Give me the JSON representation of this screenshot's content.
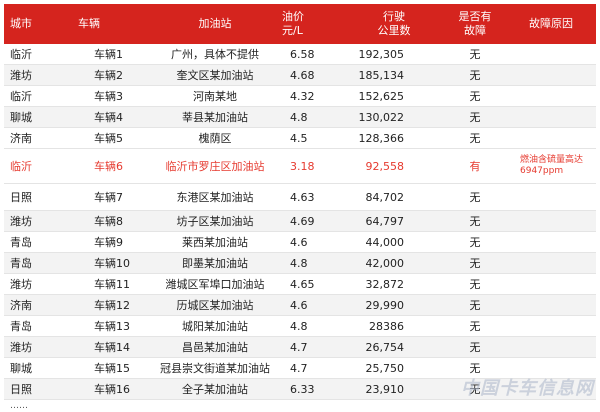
{
  "headers": {
    "city": "城市",
    "vehicle": "车辆",
    "station": "加油站",
    "price": "油价\n元/L",
    "mileage": "行驶\n公里数",
    "fault": "是否有\n故障",
    "reason": "故障原因"
  },
  "rows": [
    {
      "city": "临沂",
      "vehicle": "车辆1",
      "station": "广州，具体不提供",
      "price": "6.58",
      "mileage": "192,305",
      "fault": "无",
      "reason": ""
    },
    {
      "city": "潍坊",
      "vehicle": "车辆2",
      "station": "奎文区某加油站",
      "price": "4.68",
      "mileage": "185,134",
      "fault": "无",
      "reason": ""
    },
    {
      "city": "临沂",
      "vehicle": "车辆3",
      "station": "河南某地",
      "price": "4.32",
      "mileage": "152,625",
      "fault": "无",
      "reason": ""
    },
    {
      "city": "聊城",
      "vehicle": "车辆4",
      "station": "莘县某加油站",
      "price": "4.8",
      "mileage": "130,022",
      "fault": "无",
      "reason": ""
    },
    {
      "city": "济南",
      "vehicle": "车辆5",
      "station": "槐荫区",
      "price": "4.5",
      "mileage": "128,366",
      "fault": "无",
      "reason": ""
    },
    {
      "city": "临沂",
      "vehicle": "车辆6",
      "station": "临沂市罗庄区加油站",
      "price": "3.18",
      "mileage": "92,558",
      "fault": "有",
      "reason": "燃油含硫量高达6947ppm"
    },
    {
      "city": "日照",
      "vehicle": "车辆7",
      "station": "东港区某加油站",
      "price": "4.63",
      "mileage": "84,702",
      "fault": "无",
      "reason": ""
    },
    {
      "city": "潍坊",
      "vehicle": "车辆8",
      "station": "坊子区某加油站",
      "price": "4.69",
      "mileage": "64,797",
      "fault": "无",
      "reason": ""
    },
    {
      "city": "青岛",
      "vehicle": "车辆9",
      "station": "莱西某加油站",
      "price": "4.6",
      "mileage": "44,000",
      "fault": "无",
      "reason": ""
    },
    {
      "city": "青岛",
      "vehicle": "车辆10",
      "station": "即墨某加油站",
      "price": "4.8",
      "mileage": "42,000",
      "fault": "无",
      "reason": ""
    },
    {
      "city": "潍坊",
      "vehicle": "车辆11",
      "station": "潍城区军埠口加油站",
      "price": "4.65",
      "mileage": "32,872",
      "fault": "无",
      "reason": ""
    },
    {
      "city": "济南",
      "vehicle": "车辆12",
      "station": "历城区某加油站",
      "price": "4.6",
      "mileage": "29,990",
      "fault": "无",
      "reason": ""
    },
    {
      "city": "青岛",
      "vehicle": "车辆13",
      "station": "城阳某加油站",
      "price": "4.8",
      "mileage": "28386",
      "fault": "无",
      "reason": ""
    },
    {
      "city": "潍坊",
      "vehicle": "车辆14",
      "station": "昌邑某加油站",
      "price": "4.7",
      "mileage": "26,754",
      "fault": "无",
      "reason": ""
    },
    {
      "city": "聊城",
      "vehicle": "车辆15",
      "station": "冠县崇文街道某加油站",
      "price": "4.7",
      "mileage": "25,750",
      "fault": "无",
      "reason": ""
    },
    {
      "city": "日照",
      "vehicle": "车辆16",
      "station": "全子某加油站",
      "price": "6.33",
      "mileage": "23,910",
      "fault": "无",
      "reason": ""
    }
  ],
  "ellipsis": "……",
  "watermark": "中国卡车信息网"
}
